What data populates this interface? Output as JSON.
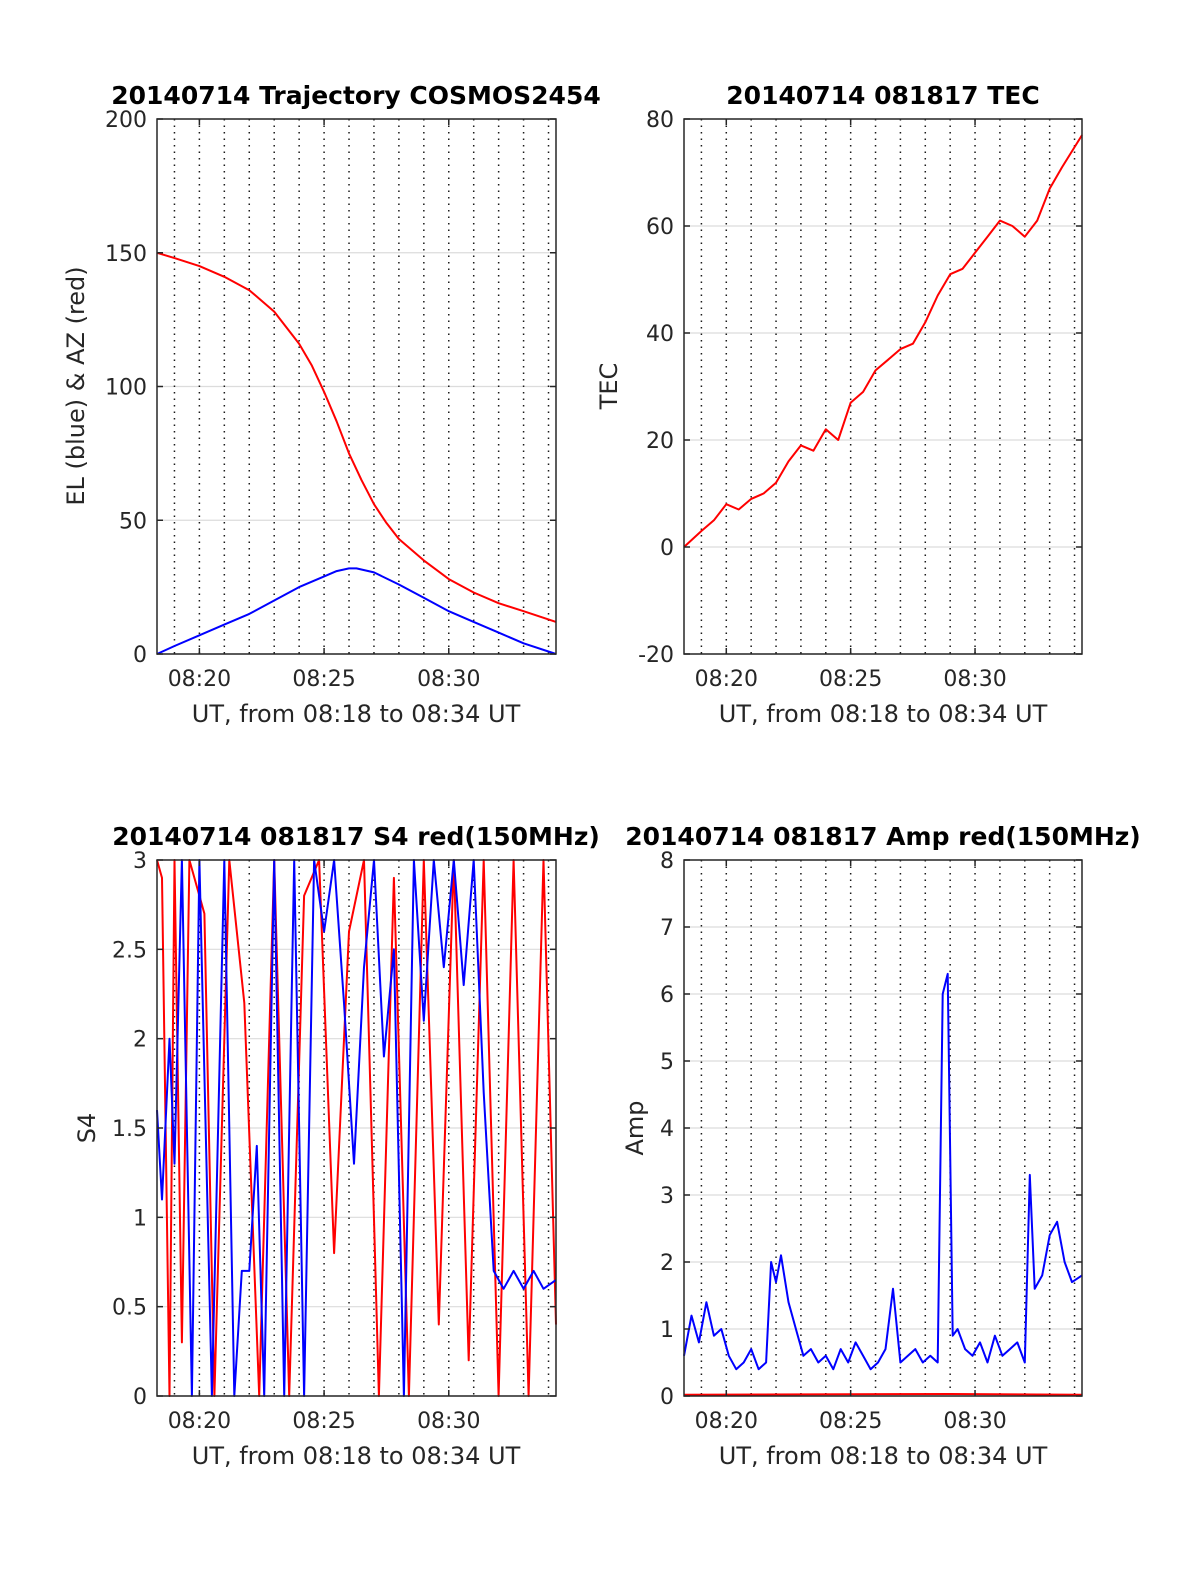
{
  "figure": {
    "panels": [
      {
        "id": "trajectory",
        "title": "20140714 Trajectory COSMOS2454",
        "xlabel": "UT, from 08:18 to 08:34 UT",
        "ylabel": "EL (blue) & AZ (red)",
        "xticks": [
          "08:20",
          "08:25",
          "08:30"
        ],
        "yticks": [
          "0",
          "50",
          "100",
          "150",
          "200"
        ]
      },
      {
        "id": "tec",
        "title": "20140714 081817 TEC",
        "xlabel": "UT, from 08:18 to 08:34 UT",
        "ylabel": "TEC",
        "xticks": [
          "08:20",
          "08:25",
          "08:30"
        ],
        "yticks": [
          "-20",
          "0",
          "20",
          "40",
          "60",
          "80"
        ]
      },
      {
        "id": "s4",
        "title": "20140714 081817 S4 red(150MHz)",
        "xlabel": "UT, from 08:18 to 08:34 UT",
        "ylabel": "S4",
        "xticks": [
          "08:20",
          "08:25",
          "08:30"
        ],
        "yticks": [
          "0",
          "0.5",
          "1",
          "1.5",
          "2",
          "2.5",
          "3"
        ]
      },
      {
        "id": "amp",
        "title": "20140714 081817 Amp red(150MHz)",
        "xlabel": "UT, from 08:18 to 08:34 UT",
        "ylabel": "Amp",
        "xticks": [
          "08:20",
          "08:25",
          "08:30"
        ],
        "yticks": [
          "0",
          "1",
          "2",
          "3",
          "4",
          "5",
          "6",
          "7",
          "8"
        ]
      }
    ]
  },
  "chart_data": [
    {
      "type": "line",
      "title": "20140714 Trajectory COSMOS2454",
      "xlabel": "UT, from 08:18 to 08:34 UT",
      "ylabel": "EL (blue) & AZ (red)",
      "x_unit": "minutes after 08:00 UT",
      "xlim": [
        18.3,
        34.3
      ],
      "ylim": [
        0,
        200
      ],
      "grid": true,
      "series": [
        {
          "color": "#ff0000",
          "x": [
            18.3,
            19,
            20,
            21,
            22,
            23,
            23.5,
            24,
            24.5,
            25,
            25.5,
            26,
            26.5,
            27,
            27.5,
            28,
            29,
            30,
            31,
            32,
            33,
            34.3
          ],
          "y": [
            150,
            148,
            145,
            141,
            136,
            128,
            122,
            116,
            108,
            98,
            87,
            75,
            65,
            56,
            49,
            43,
            35,
            28,
            23,
            19,
            16,
            12
          ]
        },
        {
          "color": "#0000ff",
          "x": [
            18.3,
            19,
            20,
            21,
            22,
            23,
            24,
            25,
            25.5,
            26,
            26.3,
            27,
            28,
            29,
            30,
            31,
            32,
            33,
            34.3
          ],
          "y": [
            0,
            3,
            7,
            11,
            15,
            20,
            25,
            29,
            31,
            32,
            32,
            30.5,
            26,
            21,
            16,
            12,
            8,
            4,
            0
          ]
        }
      ]
    },
    {
      "type": "line",
      "title": "20140714 081817 TEC",
      "xlabel": "UT, from 08:18 to 08:34 UT",
      "ylabel": "TEC",
      "x_unit": "minutes after 08:00 UT",
      "xlim": [
        18.3,
        34.3
      ],
      "ylim": [
        -20,
        80
      ],
      "grid": true,
      "series": [
        {
          "color": "#ff0000",
          "x": [
            18.3,
            19,
            19.5,
            20,
            20.5,
            21,
            21.5,
            22,
            22.5,
            23,
            23.5,
            24,
            24.5,
            25,
            25.5,
            26,
            26.5,
            27,
            27.5,
            28,
            28.5,
            29,
            29.5,
            30,
            30.5,
            31,
            31.5,
            32,
            32.5,
            33,
            33.5,
            34.3
          ],
          "y": [
            0,
            3,
            5,
            8,
            7,
            9,
            10,
            12,
            16,
            19,
            18,
            22,
            20,
            27,
            29,
            33,
            35,
            37,
            38,
            42,
            47,
            51,
            52,
            55,
            58,
            61,
            60,
            58,
            61,
            67,
            71,
            77
          ]
        }
      ]
    },
    {
      "type": "line",
      "title": "20140714 081817 S4 red(150MHz)",
      "xlabel": "UT, from 08:18 to 08:34 UT",
      "ylabel": "S4",
      "x_unit": "minutes after 08:00 UT",
      "xlim": [
        18.3,
        34.3
      ],
      "ylim": [
        0,
        3
      ],
      "grid": true,
      "series": [
        {
          "color": "#ff0000",
          "x": [
            18.3,
            18.5,
            18.8,
            19.0,
            19.3,
            19.6,
            20.2,
            20.6,
            21.2,
            21.8,
            22.4,
            23.0,
            23.6,
            24.2,
            24.8,
            25.4,
            26.0,
            26.6,
            27.2,
            27.8,
            28.4,
            29.0,
            29.6,
            30.2,
            30.8,
            31.4,
            32.0,
            32.6,
            33.2,
            33.8,
            34.3
          ],
          "y": [
            3,
            2.9,
            0,
            3,
            0.3,
            3,
            2.7,
            0,
            3,
            2.2,
            0,
            3,
            0,
            2.8,
            3,
            0.8,
            2.6,
            3,
            0,
            2.9,
            0,
            3,
            0.4,
            3,
            0.2,
            3,
            0,
            3,
            0,
            3,
            0.4
          ]
        },
        {
          "color": "#0000ff",
          "x": [
            18.3,
            18.5,
            18.8,
            19.0,
            19.3,
            19.7,
            20.0,
            20.5,
            21.0,
            21.4,
            21.7,
            22.0,
            22.3,
            22.6,
            23.0,
            23.4,
            23.8,
            24.2,
            24.6,
            25.0,
            25.4,
            25.8,
            26.2,
            26.6,
            27.0,
            27.4,
            27.8,
            28.2,
            28.6,
            29.0,
            29.4,
            29.8,
            30.2,
            30.6,
            31.0,
            31.4,
            31.8,
            32.2,
            32.6,
            33.0,
            33.4,
            33.8,
            34.3
          ],
          "y": [
            1.6,
            1.1,
            2.0,
            1.3,
            3,
            0,
            3,
            0,
            3,
            0,
            0.7,
            0.7,
            1.4,
            0,
            3,
            0,
            3,
            0,
            3,
            2.6,
            3,
            2.2,
            1.3,
            2.4,
            3,
            1.9,
            2.5,
            0,
            3,
            2.1,
            3,
            2.4,
            3,
            2.3,
            3,
            1.7,
            0.7,
            0.6,
            0.7,
            0.6,
            0.7,
            0.6,
            0.65
          ]
        }
      ]
    },
    {
      "type": "line",
      "title": "20140714 081817 Amp red(150MHz)",
      "xlabel": "UT, from 08:18 to 08:34 UT",
      "ylabel": "Amp",
      "x_unit": "minutes after 08:00 UT",
      "xlim": [
        18.3,
        34.3
      ],
      "ylim": [
        0,
        8
      ],
      "grid": true,
      "series": [
        {
          "color": "#0000ff",
          "x": [
            18.3,
            18.6,
            18.9,
            19.2,
            19.5,
            19.8,
            20.1,
            20.4,
            20.7,
            21.0,
            21.3,
            21.6,
            21.8,
            22.0,
            22.2,
            22.5,
            22.8,
            23.1,
            23.4,
            23.7,
            24.0,
            24.3,
            24.6,
            24.9,
            25.2,
            25.5,
            25.8,
            26.1,
            26.4,
            26.7,
            27.0,
            27.3,
            27.6,
            27.9,
            28.2,
            28.5,
            28.7,
            28.9,
            29.1,
            29.3,
            29.6,
            29.9,
            30.2,
            30.5,
            30.8,
            31.1,
            31.4,
            31.7,
            32.0,
            32.2,
            32.4,
            32.7,
            33.0,
            33.3,
            33.6,
            33.9,
            34.3
          ],
          "y": [
            0.6,
            1.2,
            0.8,
            1.4,
            0.9,
            1.0,
            0.6,
            0.4,
            0.5,
            0.7,
            0.4,
            0.5,
            2.0,
            1.7,
            2.1,
            1.4,
            1.0,
            0.6,
            0.7,
            0.5,
            0.6,
            0.4,
            0.7,
            0.5,
            0.8,
            0.6,
            0.4,
            0.5,
            0.7,
            1.6,
            0.5,
            0.6,
            0.7,
            0.5,
            0.6,
            0.5,
            6.0,
            6.3,
            0.9,
            1.0,
            0.7,
            0.6,
            0.8,
            0.5,
            0.9,
            0.6,
            0.7,
            0.8,
            0.5,
            3.3,
            1.6,
            1.8,
            2.4,
            2.6,
            2.0,
            1.7,
            1.8
          ]
        },
        {
          "color": "#ff0000",
          "x": [
            18.3,
            29.0,
            34.3
          ],
          "y": [
            0.02,
            0.03,
            0.02
          ]
        }
      ]
    }
  ]
}
